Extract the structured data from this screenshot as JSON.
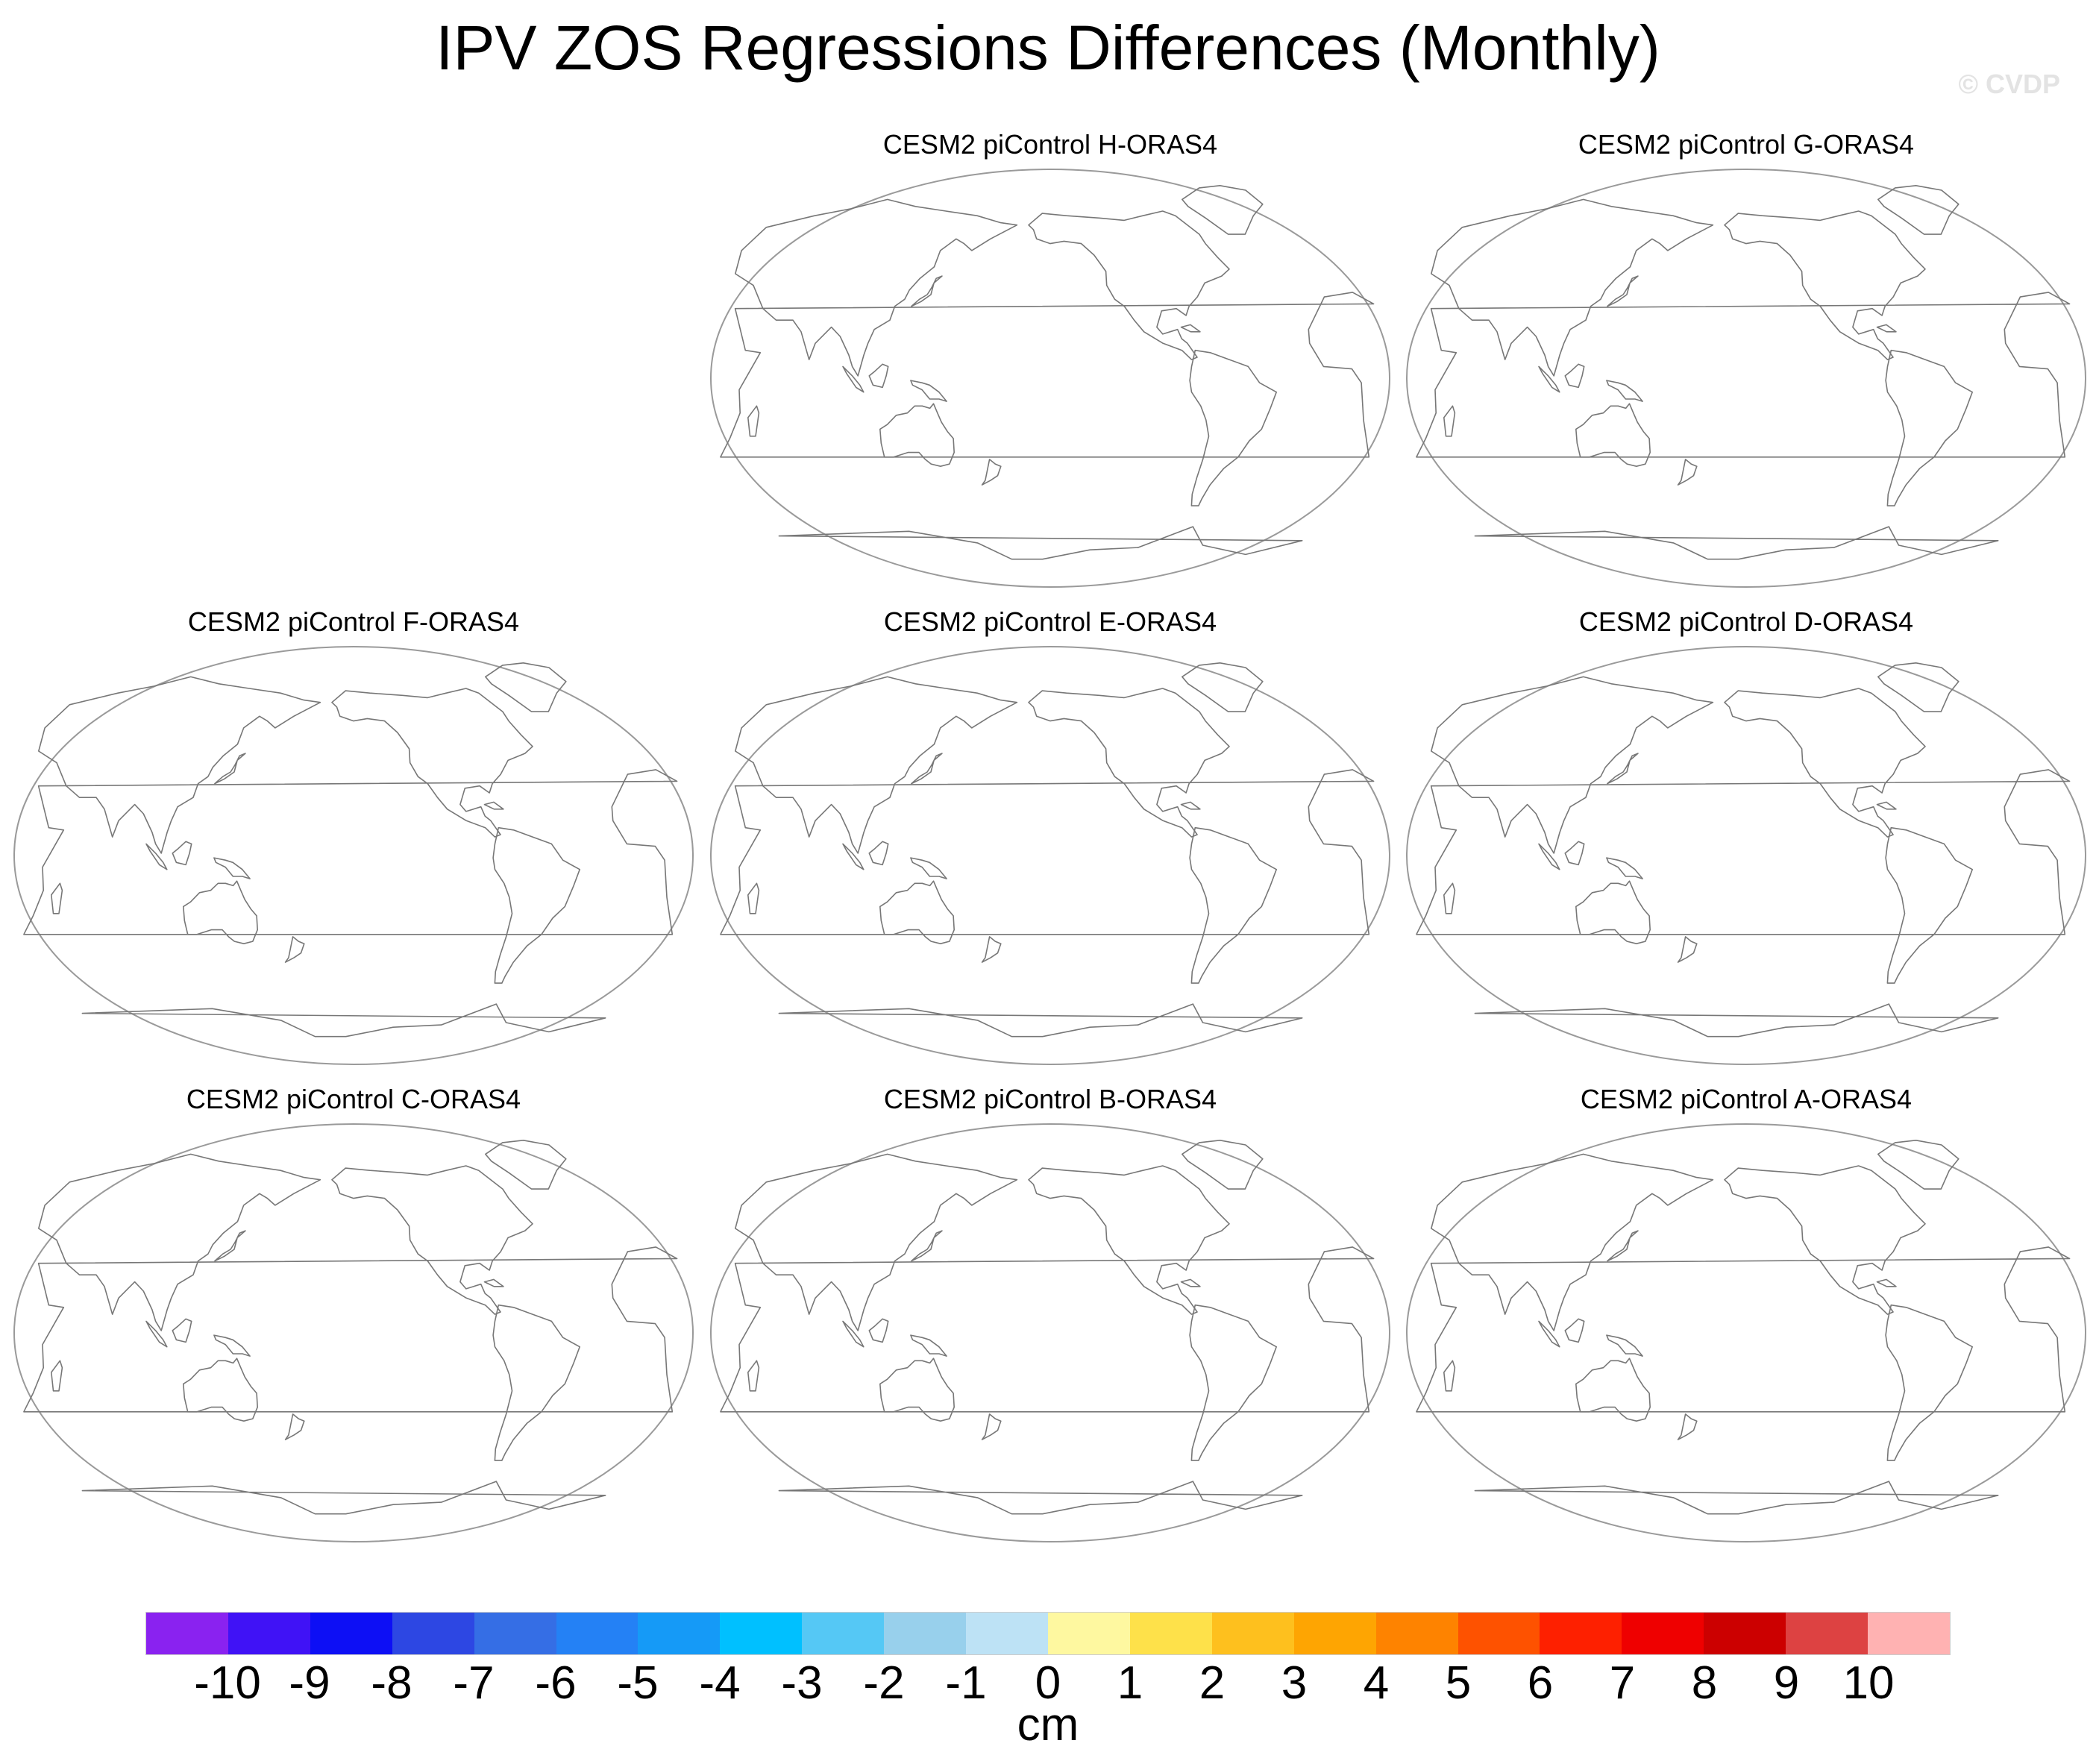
{
  "title": "IPV ZOS Regressions Differences (Monthly)",
  "watermark": "© CVDP",
  "panels": [
    {
      "label": "CESM2 piControl H-ORAS4"
    },
    {
      "label": "CESM2 piControl G-ORAS4"
    },
    {
      "label": "CESM2 piControl F-ORAS4"
    },
    {
      "label": "CESM2 piControl E-ORAS4"
    },
    {
      "label": "CESM2 piControl D-ORAS4"
    },
    {
      "label": "CESM2 piControl C-ORAS4"
    },
    {
      "label": "CESM2 piControl B-ORAS4"
    },
    {
      "label": "CESM2 piControl A-ORAS4"
    }
  ],
  "colorbar": {
    "units": "cm",
    "labels": [
      "-10",
      "-9",
      "-8",
      "-7",
      "-6",
      "-5",
      "-4",
      "-3",
      "-2",
      "-1",
      "0",
      "1",
      "2",
      "3",
      "4",
      "5",
      "6",
      "7",
      "8",
      "9",
      "10"
    ],
    "colors": [
      "#8a22f0",
      "#4012f6",
      "#0d0ff5",
      "#2d47e3",
      "#356ee5",
      "#2481f5",
      "#159af7",
      "#00c0ff",
      "#55c8f5",
      "#98d0ec",
      "#bde2f5",
      "#fef8a0",
      "#fee14a",
      "#fec01e",
      "#fea502",
      "#fe8300",
      "#fe5200",
      "#fe2000",
      "#ef0000",
      "#cc0000",
      "#dd4242",
      "#ffb2b2"
    ]
  }
}
